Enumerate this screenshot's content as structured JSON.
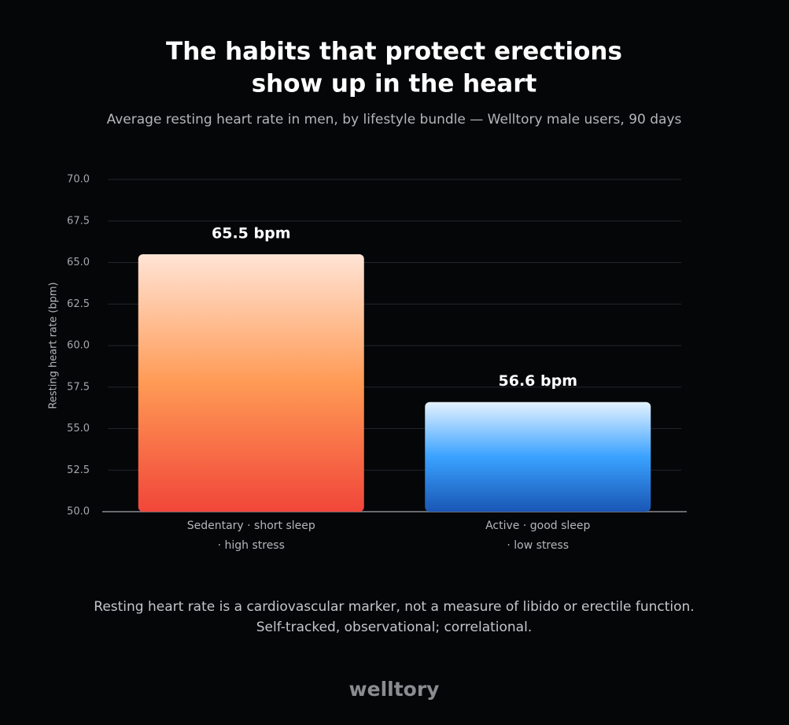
{
  "chart_data": {
    "type": "bar",
    "title": [
      "The habits that protect erections",
      "show up in the heart"
    ],
    "subtitle": "Average resting heart rate in men, by lifestyle bundle — Welltory male users, 90 days",
    "y_label": "Resting heart rate (bpm)",
    "categories": [
      [
        "Sedentary · short sleep",
        "· high stress"
      ],
      [
        "Active · good sleep",
        "· low stress"
      ]
    ],
    "values": [
      65.5,
      56.6
    ],
    "value_labels": [
      "65.5 bpm",
      "56.6 bpm"
    ],
    "colors": [
      [
        "#ffe4d6",
        "#ff9a55",
        "#f1463a"
      ],
      [
        "#e4f2ff",
        "#3aa2ff",
        "#1a56b4"
      ]
    ],
    "ylim": [
      50,
      70
    ],
    "yticks": [
      {
        "value": 50,
        "label": "50.0"
      },
      52.5,
      {
        "value": 55,
        "label": "55.0"
      },
      57.5,
      {
        "value": 60,
        "label": "60.0"
      },
      62.5,
      {
        "value": 65,
        "label": "65.0"
      },
      67.5,
      {
        "value": 70,
        "label": "70.0"
      }
    ],
    "grid": true,
    "note": [
      "Resting heart rate is a cardiovascular marker, not a measure of libido or erectile function.",
      "Self-tracked, observational; correlational."
    ],
    "brand": "welltory"
  }
}
